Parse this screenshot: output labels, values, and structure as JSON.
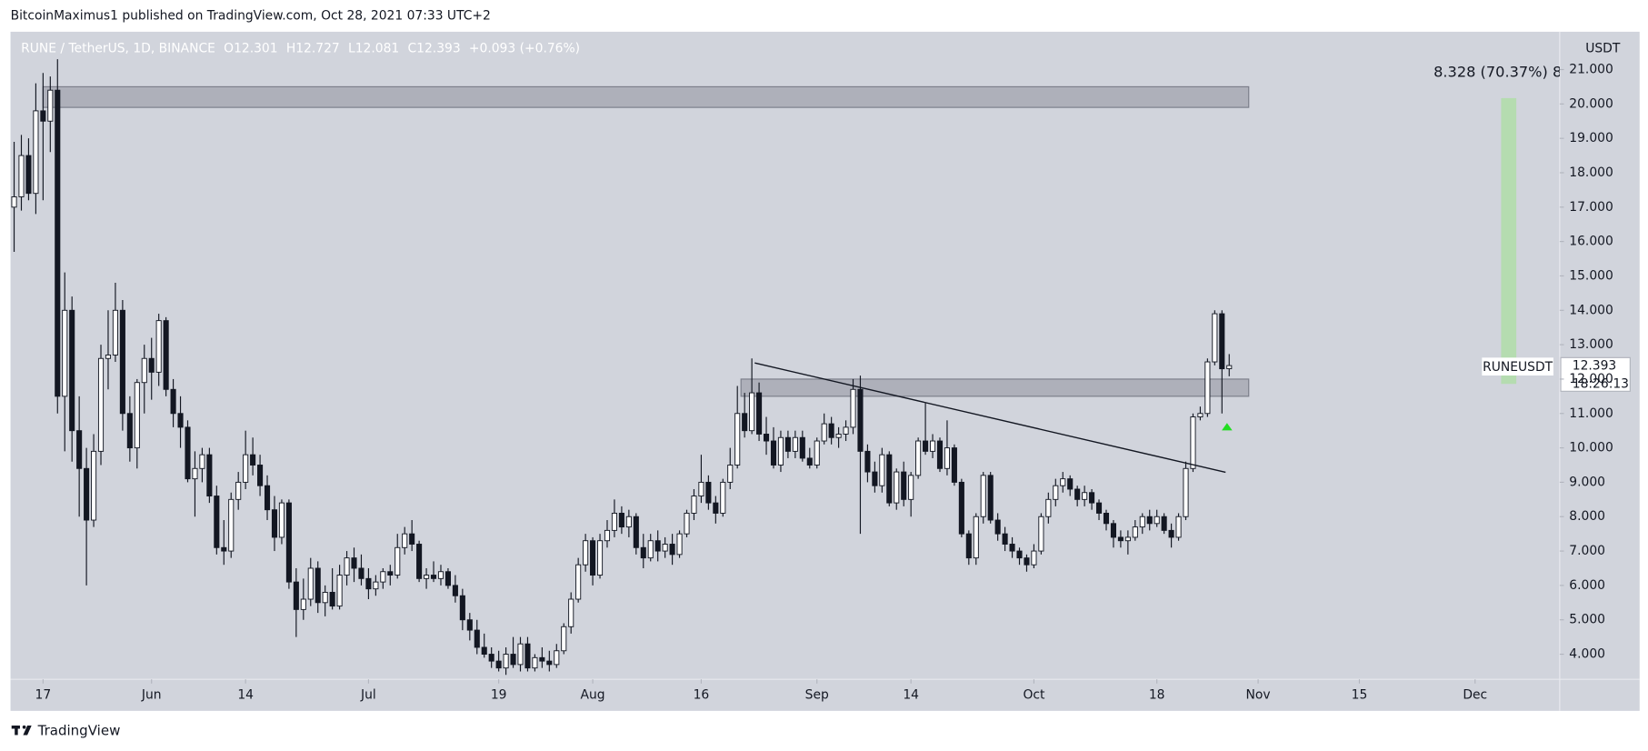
{
  "page": {
    "header": "BitcoinMaximus1 published on TradingView.com, Oct 28, 2021 07:33 UTC+2",
    "footer": "TradingView"
  },
  "chart_data": {
    "type": "candlestick",
    "legend": {
      "symbol": "RUNE / TetherUS, 1D, BINANCE",
      "ohlc": [
        [
          "O",
          "12.301"
        ],
        [
          "H",
          "12.727"
        ],
        [
          "L",
          "12.081"
        ],
        [
          "C",
          "12.393"
        ]
      ],
      "change": "+0.093 (+0.76%)"
    },
    "y_unit": "USDT",
    "price_label": {
      "symbol": "RUNEUSDT",
      "price": "12.393",
      "countdown": "18:26:13"
    },
    "background": "#d1d4dc",
    "up_color": "#ffffff",
    "down_color": "#131722",
    "wick_color": "#131722",
    "xlim": [
      -4.5,
      209.7
    ],
    "ylim": [
      3.27,
      22.1
    ],
    "xticks": [
      {
        "value": 0,
        "label": "17"
      },
      {
        "value": 15,
        "label": "Jun"
      },
      {
        "value": 28,
        "label": "14"
      },
      {
        "value": 45,
        "label": "Jul"
      },
      {
        "value": 63,
        "label": "19"
      },
      {
        "value": 76,
        "label": "Aug"
      },
      {
        "value": 91,
        "label": "16"
      },
      {
        "value": 107,
        "label": "Sep"
      },
      {
        "value": 120,
        "label": "14"
      },
      {
        "value": 137,
        "label": "Oct"
      },
      {
        "value": 154,
        "label": "18"
      },
      {
        "value": 168,
        "label": "Nov"
      },
      {
        "value": 182,
        "label": "15"
      },
      {
        "value": 198,
        "label": "Dec"
      }
    ],
    "yticks": [
      {
        "value": 4,
        "label": "4.000"
      },
      {
        "value": 5,
        "label": "5.000"
      },
      {
        "value": 6,
        "label": "6.000"
      },
      {
        "value": 7,
        "label": "7.000"
      },
      {
        "value": 8,
        "label": "8.000"
      },
      {
        "value": 9,
        "label": "9.000"
      },
      {
        "value": 10,
        "label": "10.000"
      },
      {
        "value": 11,
        "label": "11.000"
      },
      {
        "value": 12,
        "label": "12.000"
      },
      {
        "value": 13,
        "label": "13.000"
      },
      {
        "value": 14,
        "label": "14.000"
      },
      {
        "value": 15,
        "label": "15.000"
      },
      {
        "value": 16,
        "label": "16.000"
      },
      {
        "value": 17,
        "label": "17.000"
      },
      {
        "value": 18,
        "label": "18.000"
      },
      {
        "value": 19,
        "label": "19.000"
      },
      {
        "value": 20,
        "label": "20.000"
      },
      {
        "value": 21,
        "label": "21.000"
      }
    ],
    "x": [
      -4,
      -3,
      -2,
      -1,
      0,
      1,
      2,
      3,
      4,
      5,
      6,
      7,
      8,
      9,
      10,
      11,
      12,
      13,
      14,
      15,
      16,
      17,
      18,
      19,
      20,
      21,
      22,
      23,
      24,
      25,
      26,
      27,
      28,
      29,
      30,
      31,
      32,
      33,
      34,
      35,
      36,
      37,
      38,
      39,
      40,
      41,
      42,
      43,
      44,
      45,
      46,
      47,
      48,
      49,
      50,
      51,
      52,
      53,
      54,
      55,
      56,
      57,
      58,
      59,
      60,
      61,
      62,
      63,
      64,
      65,
      66,
      67,
      68,
      69,
      70,
      71,
      72,
      73,
      74,
      75,
      76,
      77,
      78,
      79,
      80,
      81,
      82,
      83,
      84,
      85,
      86,
      87,
      88,
      89,
      90,
      91,
      92,
      93,
      94,
      95,
      96,
      97,
      98,
      99,
      100,
      101,
      102,
      103,
      104,
      105,
      106,
      107,
      108,
      109,
      110,
      111,
      112,
      113,
      114,
      115,
      116,
      117,
      118,
      119,
      120,
      121,
      122,
      123,
      124,
      125,
      126,
      127,
      128,
      129,
      130,
      131,
      132,
      133,
      134,
      135,
      136,
      137,
      138,
      139,
      140,
      141,
      142,
      143,
      144,
      145,
      146,
      147,
      148,
      149,
      150,
      151,
      152,
      153,
      154,
      155,
      156,
      157,
      158,
      159,
      160,
      161,
      162,
      163,
      164
    ],
    "candles": [
      [
        17.0,
        18.9,
        15.7,
        17.3
      ],
      [
        17.3,
        19.1,
        16.9,
        18.5
      ],
      [
        18.5,
        19.0,
        17.2,
        17.4
      ],
      [
        17.4,
        20.6,
        16.8,
        19.8
      ],
      [
        19.8,
        20.9,
        17.2,
        19.5
      ],
      [
        19.5,
        20.8,
        18.6,
        20.4
      ],
      [
        20.4,
        21.3,
        11.0,
        11.5
      ],
      [
        11.5,
        15.1,
        9.9,
        14.0
      ],
      [
        14.0,
        14.4,
        9.6,
        10.5
      ],
      [
        10.5,
        11.5,
        8.0,
        9.4
      ],
      [
        9.4,
        10.0,
        6.0,
        7.9
      ],
      [
        7.9,
        10.4,
        7.7,
        9.9
      ],
      [
        9.9,
        13.0,
        9.5,
        12.6
      ],
      [
        12.6,
        14.0,
        11.7,
        12.7
      ],
      [
        12.7,
        14.8,
        12.5,
        14.0
      ],
      [
        14.0,
        14.3,
        10.5,
        11.0
      ],
      [
        11.0,
        11.5,
        9.6,
        10.0
      ],
      [
        10.0,
        12.0,
        9.4,
        11.9
      ],
      [
        11.9,
        13.0,
        11.0,
        12.6
      ],
      [
        12.6,
        13.2,
        11.4,
        12.2
      ],
      [
        12.2,
        13.9,
        11.8,
        13.7
      ],
      [
        13.7,
        13.8,
        11.5,
        11.7
      ],
      [
        11.7,
        12.0,
        10.6,
        11.0
      ],
      [
        11.0,
        11.5,
        10.0,
        10.6
      ],
      [
        10.6,
        10.8,
        9.0,
        9.1
      ],
      [
        9.1,
        9.9,
        8.0,
        9.4
      ],
      [
        9.4,
        10.0,
        9.0,
        9.8
      ],
      [
        9.8,
        10.0,
        8.4,
        8.6
      ],
      [
        8.6,
        8.9,
        6.9,
        7.1
      ],
      [
        7.1,
        7.9,
        6.6,
        7.0
      ],
      [
        7.0,
        8.7,
        6.8,
        8.5
      ],
      [
        8.5,
        9.3,
        8.2,
        9.0
      ],
      [
        9.0,
        10.5,
        8.8,
        9.8
      ],
      [
        9.8,
        10.3,
        9.2,
        9.5
      ],
      [
        9.5,
        9.8,
        8.6,
        8.9
      ],
      [
        8.9,
        9.2,
        7.9,
        8.2
      ],
      [
        8.2,
        8.6,
        7.0,
        7.4
      ],
      [
        7.4,
        8.5,
        7.2,
        8.4
      ],
      [
        8.4,
        8.5,
        5.9,
        6.1
      ],
      [
        6.1,
        6.5,
        4.5,
        5.3
      ],
      [
        5.3,
        6.2,
        5.0,
        5.6
      ],
      [
        5.6,
        6.8,
        5.4,
        6.5
      ],
      [
        6.5,
        6.7,
        5.2,
        5.5
      ],
      [
        5.5,
        6.0,
        5.1,
        5.8
      ],
      [
        5.8,
        6.5,
        5.3,
        5.4
      ],
      [
        5.4,
        6.6,
        5.3,
        6.3
      ],
      [
        6.3,
        7.0,
        6.0,
        6.8
      ],
      [
        6.8,
        7.1,
        6.1,
        6.5
      ],
      [
        6.5,
        6.9,
        6.0,
        6.2
      ],
      [
        6.2,
        6.5,
        5.6,
        5.9
      ],
      [
        5.9,
        6.3,
        5.7,
        6.1
      ],
      [
        6.1,
        6.5,
        5.9,
        6.4
      ],
      [
        6.4,
        6.6,
        6.0,
        6.3
      ],
      [
        6.3,
        7.5,
        6.2,
        7.1
      ],
      [
        7.1,
        7.7,
        6.9,
        7.5
      ],
      [
        7.5,
        7.9,
        7.0,
        7.2
      ],
      [
        7.2,
        7.3,
        6.1,
        6.2
      ],
      [
        6.2,
        6.5,
        5.9,
        6.3
      ],
      [
        6.3,
        6.7,
        6.1,
        6.2
      ],
      [
        6.2,
        6.6,
        6.0,
        6.4
      ],
      [
        6.4,
        6.5,
        5.9,
        6.0
      ],
      [
        6.0,
        6.3,
        5.5,
        5.7
      ],
      [
        5.7,
        5.9,
        4.7,
        5.0
      ],
      [
        5.0,
        5.2,
        4.4,
        4.7
      ],
      [
        4.7,
        5.0,
        4.0,
        4.2
      ],
      [
        4.2,
        4.6,
        3.9,
        4.0
      ],
      [
        4.0,
        4.2,
        3.6,
        3.8
      ],
      [
        3.8,
        4.1,
        3.5,
        3.6
      ],
      [
        3.6,
        4.2,
        3.4,
        4.0
      ],
      [
        4.0,
        4.5,
        3.6,
        3.7
      ],
      [
        3.7,
        4.5,
        3.5,
        4.3
      ],
      [
        4.3,
        4.5,
        3.5,
        3.6
      ],
      [
        3.6,
        4.0,
        3.5,
        3.9
      ],
      [
        3.9,
        4.2,
        3.6,
        3.8
      ],
      [
        3.8,
        4.1,
        3.5,
        3.7
      ],
      [
        3.7,
        4.3,
        3.6,
        4.1
      ],
      [
        4.1,
        4.9,
        4.0,
        4.8
      ],
      [
        4.8,
        5.8,
        4.6,
        5.6
      ],
      [
        5.6,
        6.8,
        5.5,
        6.6
      ],
      [
        6.6,
        7.5,
        6.4,
        7.3
      ],
      [
        7.3,
        7.4,
        6.0,
        6.3
      ],
      [
        6.3,
        7.5,
        6.2,
        7.3
      ],
      [
        7.3,
        7.9,
        7.1,
        7.6
      ],
      [
        7.6,
        8.5,
        7.4,
        8.1
      ],
      [
        8.1,
        8.3,
        7.5,
        7.7
      ],
      [
        7.7,
        8.2,
        7.4,
        8.0
      ],
      [
        8.0,
        8.1,
        6.9,
        7.1
      ],
      [
        7.1,
        7.5,
        6.5,
        6.8
      ],
      [
        6.8,
        7.5,
        6.7,
        7.3
      ],
      [
        7.3,
        7.6,
        6.7,
        7.0
      ],
      [
        7.0,
        7.4,
        6.8,
        7.2
      ],
      [
        7.2,
        7.5,
        6.6,
        6.9
      ],
      [
        6.9,
        7.6,
        6.8,
        7.5
      ],
      [
        7.5,
        8.2,
        7.4,
        8.1
      ],
      [
        8.1,
        8.8,
        7.9,
        8.6
      ],
      [
        8.6,
        9.8,
        8.4,
        9.0
      ],
      [
        9.0,
        9.2,
        8.2,
        8.4
      ],
      [
        8.4,
        8.6,
        7.8,
        8.1
      ],
      [
        8.1,
        9.1,
        8.0,
        9.0
      ],
      [
        9.0,
        10.0,
        8.8,
        9.5
      ],
      [
        9.5,
        11.8,
        9.4,
        11.0
      ],
      [
        11.0,
        11.6,
        10.3,
        10.5
      ],
      [
        10.5,
        12.6,
        10.4,
        11.6
      ],
      [
        11.6,
        11.9,
        10.2,
        10.4
      ],
      [
        10.4,
        10.9,
        9.8,
        10.2
      ],
      [
        10.2,
        10.6,
        9.4,
        9.5
      ],
      [
        9.5,
        10.5,
        9.3,
        10.3
      ],
      [
        10.3,
        10.5,
        9.7,
        9.9
      ],
      [
        9.9,
        10.5,
        9.7,
        10.3
      ],
      [
        10.3,
        10.5,
        9.6,
        9.7
      ],
      [
        9.7,
        10.0,
        9.4,
        9.5
      ],
      [
        9.5,
        10.3,
        9.4,
        10.2
      ],
      [
        10.2,
        11.0,
        10.1,
        10.7
      ],
      [
        10.7,
        10.9,
        10.1,
        10.3
      ],
      [
        10.3,
        10.6,
        10.0,
        10.4
      ],
      [
        10.4,
        10.8,
        10.2,
        10.6
      ],
      [
        10.6,
        12.0,
        10.4,
        11.7
      ],
      [
        11.7,
        12.1,
        7.5,
        9.9
      ],
      [
        9.9,
        10.1,
        9.0,
        9.3
      ],
      [
        9.3,
        9.6,
        8.7,
        8.9
      ],
      [
        8.9,
        10.0,
        8.7,
        9.8
      ],
      [
        9.8,
        9.9,
        8.3,
        8.4
      ],
      [
        8.4,
        9.4,
        8.2,
        9.3
      ],
      [
        9.3,
        9.6,
        8.3,
        8.5
      ],
      [
        8.5,
        9.3,
        8.0,
        9.2
      ],
      [
        9.2,
        10.3,
        9.1,
        10.2
      ],
      [
        10.2,
        11.3,
        9.8,
        9.9
      ],
      [
        9.9,
        10.4,
        9.7,
        10.2
      ],
      [
        10.2,
        10.3,
        9.3,
        9.4
      ],
      [
        9.4,
        10.8,
        9.2,
        10.0
      ],
      [
        10.0,
        10.1,
        8.9,
        9.0
      ],
      [
        9.0,
        9.1,
        7.4,
        7.5
      ],
      [
        7.5,
        7.6,
        6.6,
        6.8
      ],
      [
        6.8,
        8.1,
        6.6,
        8.0
      ],
      [
        8.0,
        9.3,
        7.8,
        9.2
      ],
      [
        9.2,
        9.3,
        7.8,
        7.9
      ],
      [
        7.9,
        8.1,
        7.3,
        7.5
      ],
      [
        7.5,
        7.7,
        7.0,
        7.2
      ],
      [
        7.2,
        7.4,
        6.8,
        7.0
      ],
      [
        7.0,
        7.1,
        6.6,
        6.8
      ],
      [
        6.8,
        6.9,
        6.4,
        6.6
      ],
      [
        6.6,
        7.2,
        6.5,
        7.0
      ],
      [
        7.0,
        8.1,
        6.9,
        8.0
      ],
      [
        8.0,
        8.7,
        7.8,
        8.5
      ],
      [
        8.5,
        9.1,
        8.3,
        8.9
      ],
      [
        8.9,
        9.3,
        8.7,
        9.1
      ],
      [
        9.1,
        9.2,
        8.6,
        8.8
      ],
      [
        8.8,
        8.9,
        8.3,
        8.5
      ],
      [
        8.5,
        8.9,
        8.3,
        8.7
      ],
      [
        8.7,
        8.8,
        8.2,
        8.4
      ],
      [
        8.4,
        8.5,
        7.9,
        8.1
      ],
      [
        8.1,
        8.2,
        7.6,
        7.8
      ],
      [
        7.8,
        7.9,
        7.1,
        7.4
      ],
      [
        7.4,
        7.6,
        7.1,
        7.3
      ],
      [
        7.3,
        7.6,
        6.9,
        7.4
      ],
      [
        7.4,
        7.9,
        7.3,
        7.7
      ],
      [
        7.7,
        8.1,
        7.5,
        8.0
      ],
      [
        8.0,
        8.2,
        7.6,
        7.8
      ],
      [
        7.8,
        8.2,
        7.7,
        8.0
      ],
      [
        8.0,
        8.1,
        7.5,
        7.6
      ],
      [
        7.6,
        7.8,
        7.1,
        7.4
      ],
      [
        7.4,
        8.1,
        7.3,
        8.0
      ],
      [
        8.0,
        9.6,
        7.9,
        9.4
      ],
      [
        9.4,
        11.0,
        9.3,
        10.9
      ],
      [
        10.9,
        11.2,
        10.8,
        11.0
      ],
      [
        11.0,
        12.6,
        10.9,
        12.5
      ],
      [
        12.5,
        14.0,
        12.4,
        13.9
      ],
      [
        13.9,
        14.0,
        11.0,
        12.3
      ],
      [
        12.301,
        12.727,
        12.081,
        12.393
      ]
    ],
    "zones": [
      {
        "x": [
          0,
          166.7
        ],
        "y": [
          19.9,
          20.5
        ]
      },
      {
        "x": [
          96.5,
          166.7
        ],
        "y": [
          11.5,
          12.0
        ]
      }
    ],
    "zone_color": "rgba(130,133,145,0.45)",
    "zone_border": "#7b7e8a",
    "trendline": {
      "x": [
        98.4,
        163.5
      ],
      "y": [
        12.47,
        9.29
      ],
      "color": "#131722"
    },
    "measure": {
      "x": [
        201.6,
        203.7
      ],
      "y": [
        11.86,
        20.17
      ],
      "label": "8.328 (70.37%) 8",
      "color": "#b5dcb0"
    },
    "marker": {
      "x": 163.7,
      "y": 10.6,
      "color": "#22dd22"
    }
  }
}
